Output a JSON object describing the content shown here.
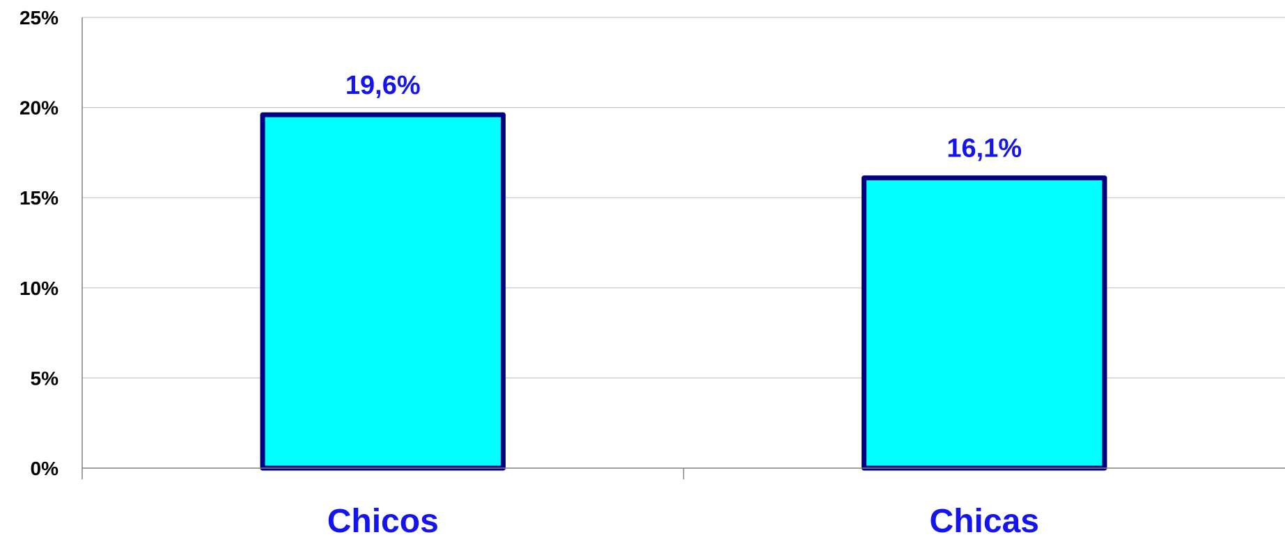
{
  "chart_data": {
    "type": "bar",
    "categories": [
      "Chicos",
      "Chicas"
    ],
    "values": [
      19.6,
      16.1
    ],
    "data_labels": [
      "19,6%",
      "16,1%"
    ],
    "title": "",
    "xlabel": "",
    "ylabel": "",
    "ylim": [
      0,
      25
    ],
    "y_ticks": [
      0,
      5,
      10,
      15,
      20,
      25
    ],
    "y_tick_labels": [
      "0%",
      "5%",
      "10%",
      "15%",
      "20%",
      "25%"
    ],
    "grid": true,
    "legend": "none",
    "colors": {
      "bar_fill": "#00FFFF",
      "bar_stroke": "#000080",
      "label_color": "#1414F0",
      "grid": "#C8C8C8",
      "axis": "#808080"
    }
  }
}
